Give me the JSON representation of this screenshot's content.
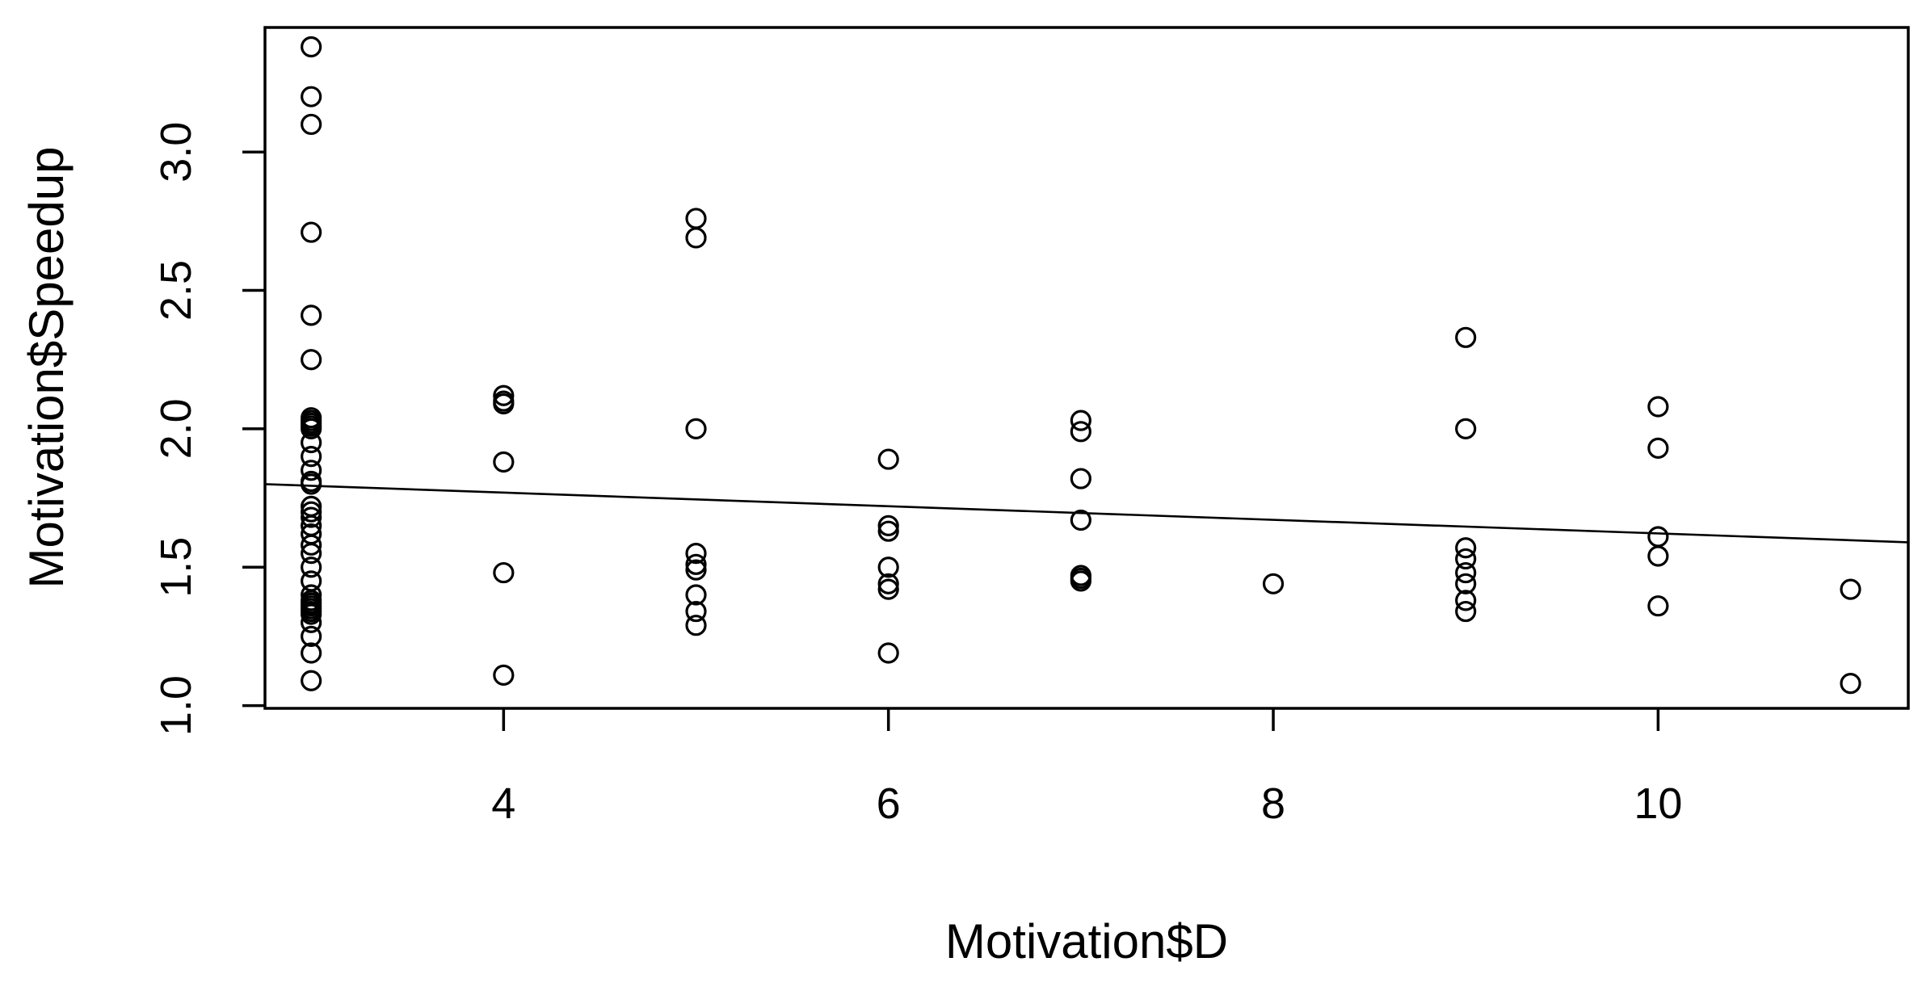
{
  "chart_data": {
    "type": "scatter",
    "title": "",
    "xlabel": "Motivation$D",
    "ylabel": "Motivation$Speedup",
    "xlim": [
      2.76,
      11.3
    ],
    "ylim": [
      0.99,
      3.45
    ],
    "xticks": [
      4,
      6,
      8,
      10
    ],
    "xtick_labels": [
      "4",
      "6",
      "8",
      "10"
    ],
    "yticks": [
      1.0,
      1.5,
      2.0,
      2.5,
      3.0
    ],
    "ytick_labels": [
      "1.0",
      "1.5",
      "2.0",
      "2.5",
      "3.0"
    ],
    "grid": false,
    "legend": "none",
    "series": [
      {
        "x": [
          3,
          3,
          3,
          3,
          3,
          3,
          3,
          3,
          3,
          3,
          3,
          3,
          3,
          3,
          3,
          3,
          3,
          3,
          3,
          3,
          3,
          3,
          3,
          3,
          3,
          3,
          3,
          3,
          3,
          3,
          3,
          3,
          3,
          3,
          3,
          3,
          4,
          4,
          4,
          4,
          4,
          4,
          5,
          5,
          5,
          5,
          5,
          5,
          5,
          5,
          5,
          6,
          6,
          6,
          6,
          6,
          6,
          6,
          7,
          7,
          7,
          7,
          7,
          7,
          7,
          8,
          9,
          9,
          9,
          9,
          9,
          9,
          9,
          9,
          10,
          10,
          10,
          10,
          10,
          11,
          11
        ],
        "y": [
          3.38,
          3.2,
          3.1,
          2.71,
          2.41,
          2.25,
          2.04,
          2.03,
          2.02,
          2.01,
          2.0,
          1.95,
          1.9,
          1.85,
          1.81,
          1.8,
          1.72,
          1.7,
          1.68,
          1.65,
          1.62,
          1.58,
          1.55,
          1.5,
          1.45,
          1.4,
          1.38,
          1.37,
          1.36,
          1.35,
          1.34,
          1.33,
          1.3,
          1.25,
          1.19,
          1.09,
          2.12,
          2.1,
          2.09,
          1.88,
          1.48,
          1.11,
          2.76,
          2.69,
          2.0,
          1.55,
          1.51,
          1.49,
          1.4,
          1.34,
          1.29,
          1.89,
          1.65,
          1.63,
          1.5,
          1.44,
          1.42,
          1.19,
          2.03,
          1.99,
          1.82,
          1.67,
          1.47,
          1.46,
          1.45,
          1.44,
          2.33,
          2.0,
          1.57,
          1.53,
          1.48,
          1.44,
          1.38,
          1.34,
          2.08,
          1.93,
          1.61,
          1.54,
          1.36,
          1.42,
          1.08
        ]
      }
    ],
    "fit_line": {
      "x": [
        2.76,
        11.3
      ],
      "y": [
        1.8,
        1.59
      ]
    }
  }
}
